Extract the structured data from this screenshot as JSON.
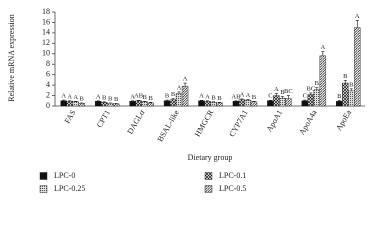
{
  "chart_data": {
    "type": "bar",
    "y_label": "Relative mRNA expression",
    "x_label": "Dietary group",
    "categories": [
      "FAS",
      "CPT1",
      "DAGLα",
      "BSAL-like",
      "HMGCR",
      "CYP7A1",
      "ApoA1",
      "ApoA4a",
      "ApoEa"
    ],
    "series": [
      {
        "name": "LPC-0",
        "color": "#111111",
        "pattern": "solid",
        "values": [
          1.0,
          0.9,
          0.9,
          1.0,
          1.0,
          0.9,
          1.0,
          1.0,
          0.9
        ],
        "errors": [
          0.15,
          0.1,
          0.1,
          0.15,
          0.1,
          0.1,
          0.1,
          0.15,
          0.15
        ],
        "letters": [
          "A",
          "A",
          "A",
          "B",
          "A",
          "AB",
          "C",
          "C",
          "B"
        ]
      },
      {
        "name": "LPC-0.1",
        "color": "#111111",
        "pattern": "cross",
        "values": [
          0.9,
          0.7,
          1.0,
          1.2,
          0.9,
          1.2,
          2.0,
          2.2,
          4.4
        ],
        "errors": [
          0.1,
          0.1,
          0.1,
          0.2,
          0.1,
          0.15,
          0.4,
          0.3,
          0.5
        ],
        "letters": [
          "A",
          "B",
          "AB",
          "B",
          "A",
          "A",
          "A",
          "BC",
          "B"
        ]
      },
      {
        "name": "LPC-0.25",
        "color": "#555555",
        "pattern": "dots",
        "values": [
          0.8,
          0.5,
          0.8,
          2.4,
          0.7,
          1.1,
          1.5,
          3.1,
          2.9
        ],
        "errors": [
          0.1,
          0.1,
          0.1,
          0.3,
          0.1,
          0.15,
          0.3,
          0.4,
          0.4
        ],
        "letters": [
          "A",
          "B",
          "B",
          "A",
          "B",
          "A",
          "B",
          "B",
          "B"
        ]
      },
      {
        "name": "LPC-0.5",
        "color": "#111111",
        "pattern": "diagonal",
        "values": [
          0.5,
          0.4,
          0.6,
          3.8,
          0.6,
          0.8,
          1.4,
          9.6,
          15.0
        ],
        "errors": [
          0.1,
          0.1,
          0.1,
          0.6,
          0.1,
          0.1,
          0.6,
          0.8,
          1.4
        ],
        "letters": [
          "B",
          "B",
          "B",
          "A",
          "B",
          "B",
          "BC",
          "A",
          "A"
        ]
      }
    ],
    "ylim": [
      0,
      18
    ],
    "yticks": [
      0,
      2,
      4,
      6,
      8,
      10,
      12,
      14,
      16,
      18
    ]
  }
}
